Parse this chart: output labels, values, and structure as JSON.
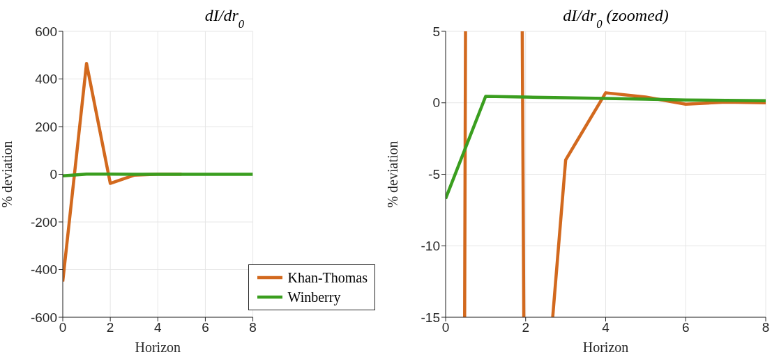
{
  "chart_data": [
    {
      "type": "line",
      "title": "dI/dr$_{0}$",
      "xlabel": "Horizon",
      "ylabel": "% deviation",
      "x": [
        0,
        1,
        2,
        3,
        4,
        5,
        6,
        7,
        8
      ],
      "series": [
        {
          "name": "Khan-Thomas",
          "color": "#d2691e",
          "values": [
            -450,
            465,
            -38,
            -4,
            0.7,
            0.4,
            null,
            null,
            null
          ]
        },
        {
          "name": "Winberry",
          "color": "#3a9e1f",
          "values": [
            -6.7,
            0.45,
            0.4,
            0.35,
            0.3,
            0.25,
            0.2,
            0.17,
            0.15
          ]
        }
      ],
      "xlim": [
        0,
        8
      ],
      "xticks": [
        0,
        2,
        4,
        6,
        8
      ],
      "ylim": [
        -600,
        600
      ],
      "yticks": [
        -600,
        -400,
        -200,
        0,
        200,
        400,
        600
      ],
      "grid": true,
      "legend": "bottom right",
      "marker": "none",
      "line_style": "solid"
    },
    {
      "type": "line",
      "title": "dI/dr$_{0}$ (zoomed)",
      "xlabel": "Horizon",
      "ylabel": "% deviation",
      "x": [
        0,
        1,
        2,
        3,
        4,
        5,
        6,
        7,
        8
      ],
      "series": [
        {
          "color": "#d2691e",
          "x": [
            0.475,
            0.497,
            0.7,
            1.915,
            1.954,
            2.3,
            2.676,
            3,
            4,
            5,
            6,
            7,
            8
          ],
          "values": [
            -15,
            5,
            null,
            5,
            -15,
            null,
            -15,
            -4,
            0.7,
            0.4,
            -0.1,
            0.05,
            0
          ]
        },
        {
          "color": "#3a9e1f",
          "values": [
            -6.7,
            0.45,
            0.4,
            0.35,
            0.3,
            0.25,
            0.2,
            0.17,
            0.15
          ]
        }
      ],
      "xlim": [
        0,
        8
      ],
      "xticks": [
        0,
        2,
        4,
        6,
        8
      ],
      "ylim": [
        -15,
        5
      ],
      "yticks": [
        -15,
        -10,
        -5,
        0,
        5
      ],
      "grid": true,
      "legend": false,
      "marker": "none",
      "line_style": "solid"
    }
  ]
}
